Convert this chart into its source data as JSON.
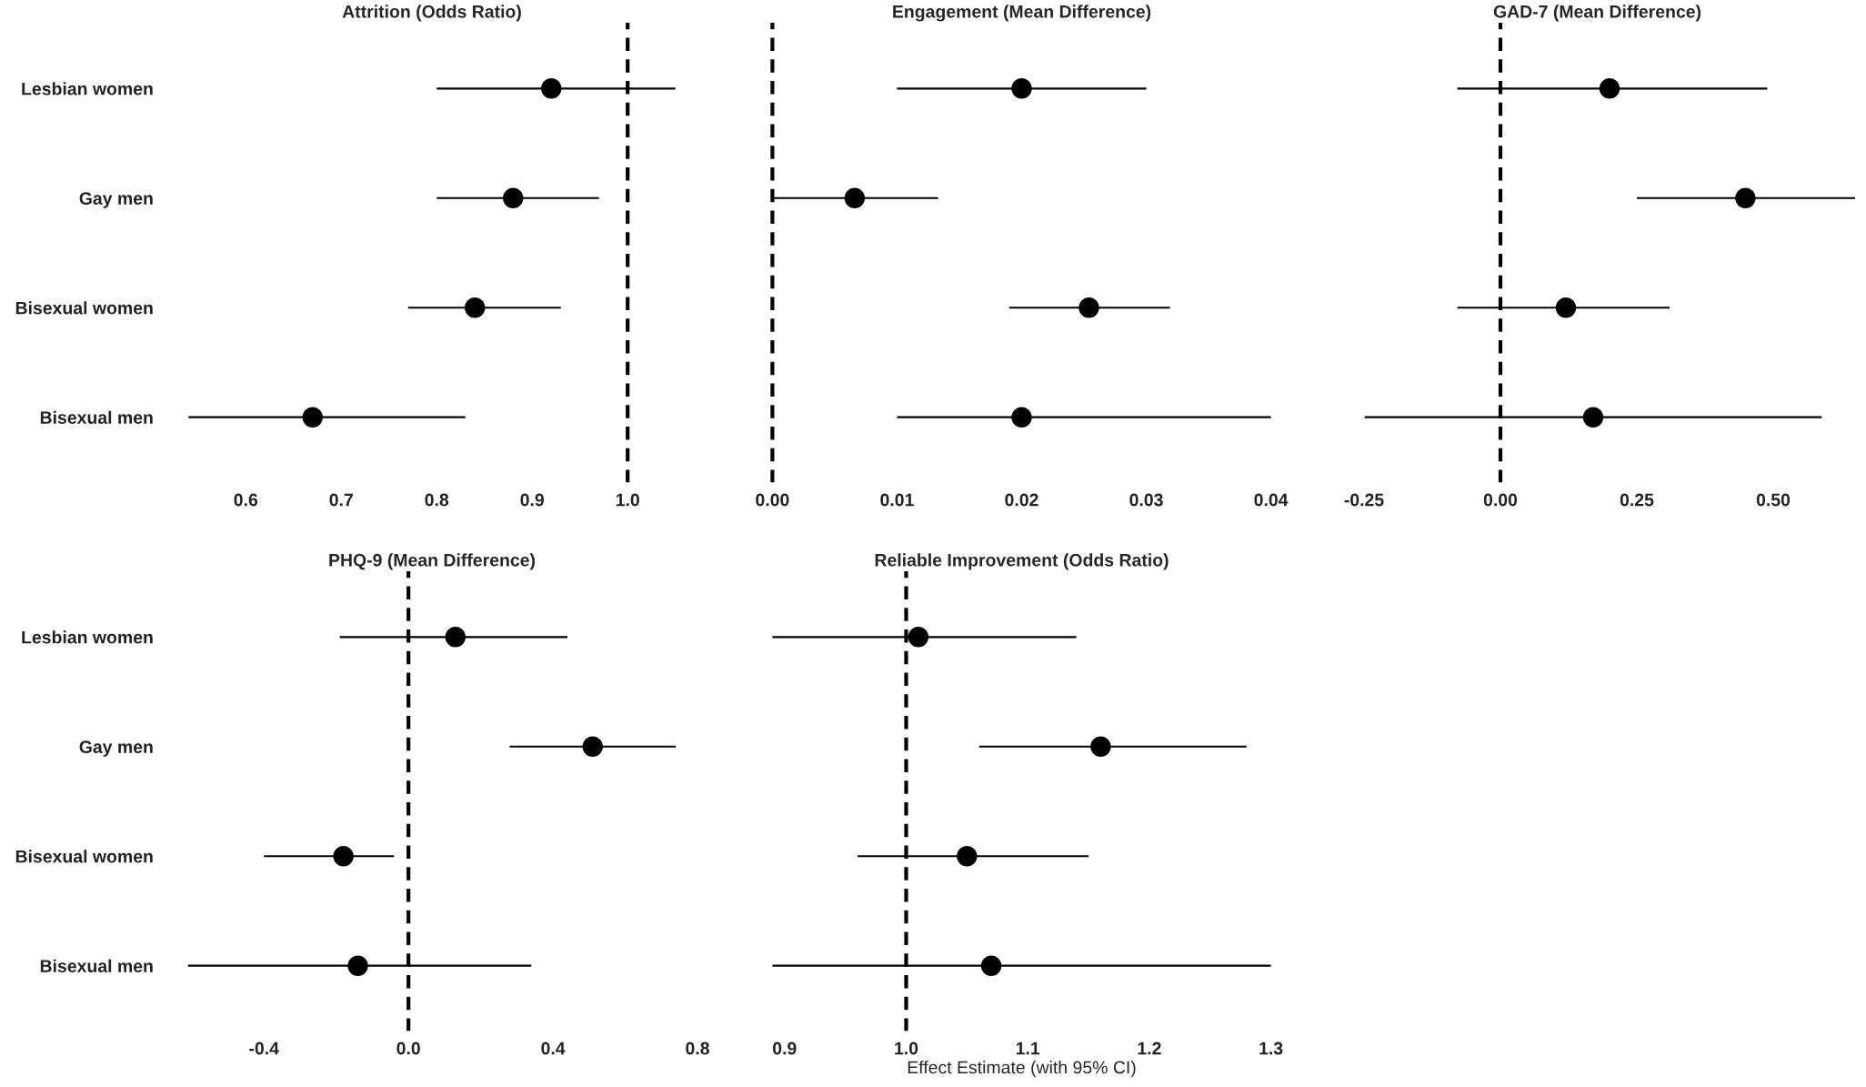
{
  "chart_data": [
    {
      "type": "scatter",
      "title": "Attrition (Odds Ratio)",
      "orientation": "horizontal",
      "categories": [
        "Lesbian women",
        "Gay men",
        "Bisexual women",
        "Bisexual men"
      ],
      "color": "#000000",
      "values": [
        0.92,
        0.88,
        0.84,
        0.67
      ],
      "errors": [
        [
          0.8,
          1.05
        ],
        [
          0.8,
          0.97
        ],
        [
          0.77,
          0.93
        ],
        [
          0.54,
          0.83
        ]
      ],
      "xlim": [
        0.514,
        1.076
      ],
      "xticks": [
        0.6,
        0.7,
        0.8,
        0.9,
        {
          "value": 1,
          "label": "1.0"
        }
      ],
      "ref_lines": [
        {
          "axis": "x",
          "value": 1,
          "line_style": "dashed",
          "color": "#000000"
        }
      ],
      "marker": "circle"
    },
    {
      "type": "scatter",
      "title": "Engagement (Mean Difference)",
      "orientation": "horizontal",
      "categories": [
        null,
        null,
        null,
        null
      ],
      "color": "#000000",
      "values": [
        0.02,
        0.0066,
        0.0254,
        0.02
      ],
      "errors": [
        [
          0.01,
          0.03
        ],
        [
          0.0,
          0.0133
        ],
        [
          0.019,
          0.0319
        ],
        [
          0.01,
          0.04
        ]
      ],
      "xlim": [
        -0.002,
        0.042
      ],
      "xticks": [
        {
          "value": 0,
          "label": "0.00"
        },
        0.01,
        0.02,
        0.03,
        0.04
      ],
      "ref_lines": [
        {
          "axis": "x",
          "value": 0,
          "line_style": "dashed",
          "color": "#000000"
        }
      ],
      "marker": "circle",
      "tick_labels": "x"
    },
    {
      "type": "scatter",
      "title": "GAD-7 (Mean Difference)",
      "orientation": "horizontal",
      "categories": [
        null,
        null,
        null,
        null
      ],
      "color": "#000000",
      "values": [
        0.2,
        0.449,
        0.12,
        0.17
      ],
      "errors": [
        [
          -0.079,
          0.489
        ],
        [
          0.25,
          0.65
        ],
        [
          -0.079,
          0.31
        ],
        [
          -0.249,
          0.589
        ]
      ],
      "xlim": [
        -0.295,
        0.65
      ],
      "xticks": [
        -0.25,
        {
          "value": 0,
          "label": "0.00"
        },
        0.25,
        {
          "value": 0.5,
          "label": "0.50"
        }
      ],
      "ref_lines": [
        {
          "axis": "x",
          "value": 0,
          "line_style": "dashed",
          "color": "#000000"
        }
      ],
      "marker": "circle",
      "tick_labels": "x"
    },
    {
      "type": "scatter",
      "title": "PHQ-9 (Mean Difference)",
      "orientation": "horizontal",
      "categories": [
        "Lesbian women",
        "Gay men",
        "Bisexual women",
        "Bisexual men"
      ],
      "color": "#000000",
      "values": [
        0.13,
        0.51,
        -0.18,
        -0.14
      ],
      "errors": [
        [
          -0.19,
          0.44
        ],
        [
          0.28,
          0.74
        ],
        [
          -0.4,
          -0.04
        ],
        [
          -0.61,
          0.34
        ]
      ],
      "xlim": [
        -0.6775,
        0.8075
      ],
      "xticks": [
        -0.4,
        {
          "value": 0,
          "label": "0.0"
        },
        0.4,
        0.8
      ],
      "ref_lines": [
        {
          "axis": "x",
          "value": 0,
          "line_style": "dashed",
          "color": "#000000"
        }
      ],
      "marker": "circle"
    },
    {
      "type": "scatter",
      "title": "Reliable Improvement (Odds Ratio)",
      "xlabel": "Effect Estimate (with 95% CI)",
      "orientation": "horizontal",
      "categories": [
        null,
        null,
        null,
        null
      ],
      "color": "#000000",
      "values": [
        1.01,
        1.16,
        1.05,
        1.07
      ],
      "errors": [
        [
          0.89,
          1.14
        ],
        [
          1.06,
          1.28
        ],
        [
          0.96,
          1.15
        ],
        [
          0.89,
          1.3
        ]
      ],
      "xlim": [
        0.8695,
        1.3205
      ],
      "xticks": [
        0.9,
        {
          "value": 1,
          "label": "1.0"
        },
        1.1,
        1.2,
        1.3
      ],
      "ref_lines": [
        {
          "axis": "x",
          "value": 1,
          "line_style": "dashed",
          "color": "#000000"
        }
      ],
      "marker": "circle",
      "tick_labels": "x"
    }
  ]
}
